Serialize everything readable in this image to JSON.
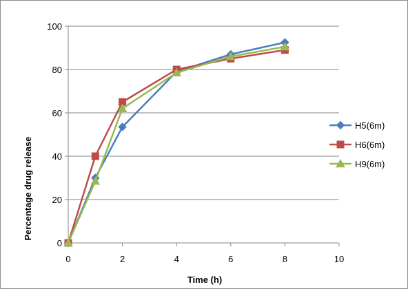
{
  "chart_data": {
    "type": "line",
    "title": "",
    "xlabel": "Time (h)",
    "ylabel": "Percentage drug release",
    "xlim": [
      0,
      10
    ],
    "ylim": [
      0,
      100
    ],
    "x_ticks": [
      0,
      2,
      4,
      6,
      8,
      10
    ],
    "y_ticks": [
      0,
      20,
      40,
      60,
      80,
      100
    ],
    "grid": "horizontal",
    "legend_position": "right",
    "series": [
      {
        "name": "H5(6m)",
        "color": "#4A7EBB",
        "marker": "diamond",
        "x": [
          0,
          1,
          2,
          4,
          6,
          8
        ],
        "y": [
          0,
          30,
          53.5,
          79,
          87,
          92.5
        ]
      },
      {
        "name": "H6(6m)",
        "color": "#BE4B48",
        "marker": "square",
        "x": [
          0,
          1,
          2,
          4,
          6,
          8
        ],
        "y": [
          0,
          40,
          65,
          80,
          85,
          89
        ]
      },
      {
        "name": "H9(6m)",
        "color": "#98B954",
        "marker": "triangle",
        "x": [
          0,
          1,
          2,
          4,
          6,
          8
        ],
        "y": [
          0,
          28.5,
          62,
          78.5,
          86,
          90.5
        ]
      }
    ]
  }
}
